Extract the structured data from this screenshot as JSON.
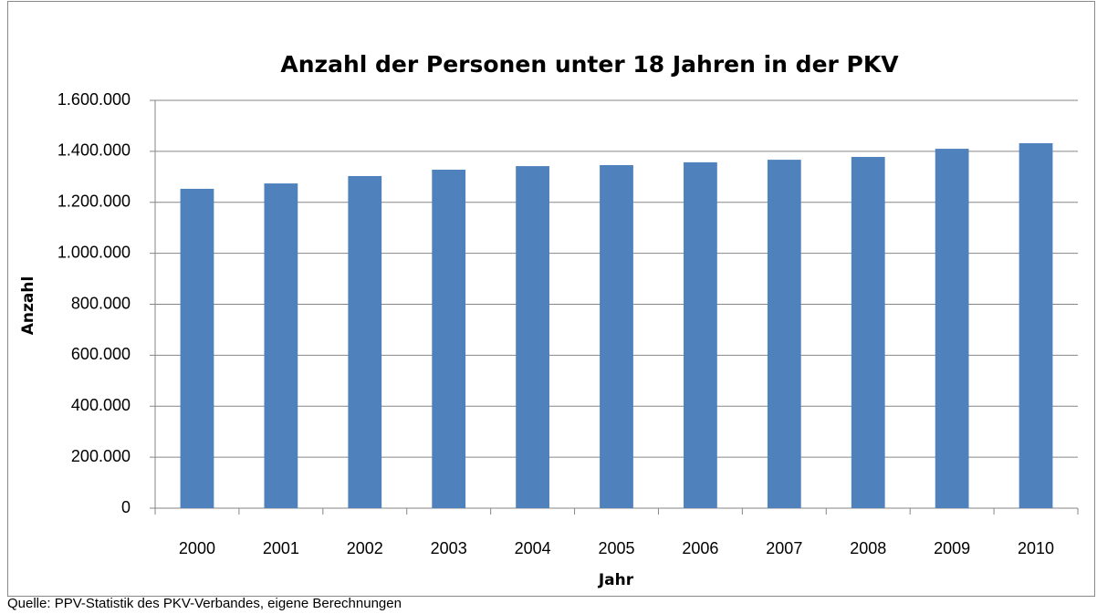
{
  "chart_data": {
    "type": "bar",
    "title": "Anzahl der Personen unter 18 Jahren in der PKV",
    "x_label": "Jahr",
    "y_label": "Anzahl",
    "source": "Quelle: PPV-Statistik des PKV-Verbandes, eigene Berechnungen",
    "categories": [
      "2000",
      "2001",
      "2002",
      "2003",
      "2004",
      "2005",
      "2006",
      "2007",
      "2008",
      "2009",
      "2010"
    ],
    "values": [
      1253000,
      1274000,
      1303000,
      1328000,
      1342000,
      1346000,
      1357000,
      1367000,
      1378000,
      1410000,
      1432000
    ],
    "color": "#4f81bd",
    "ylim": [
      0,
      1600000
    ],
    "yticks": [
      0,
      {
        "value": 200000,
        "label": "200.000"
      },
      {
        "value": 400000,
        "label": "400.000"
      },
      {
        "value": 600000,
        "label": "600.000"
      },
      {
        "value": 800000,
        "label": "800.000"
      },
      {
        "value": 1000000,
        "label": "1.000.000"
      },
      {
        "value": 1200000,
        "label": "1.200.000"
      },
      {
        "value": 1400000,
        "label": "1.400.000"
      },
      {
        "value": 1600000,
        "label": "1.600.000"
      }
    ],
    "grid": true
  }
}
